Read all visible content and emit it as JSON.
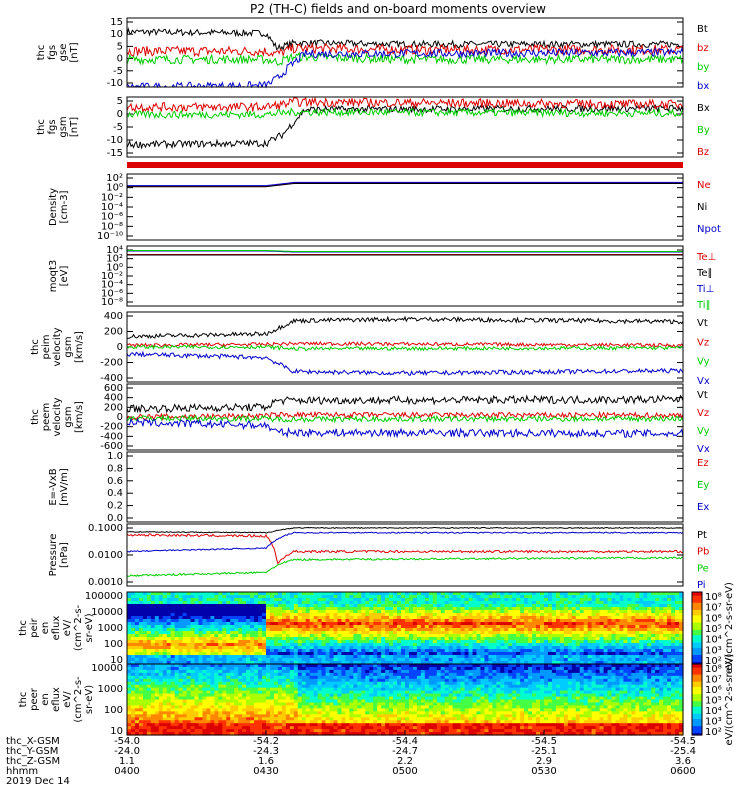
{
  "title": "P2 (TH-C) fields and on-board moments overview",
  "colors": {
    "black": "#000000",
    "red": "#dd0000",
    "green": "#00cc00",
    "blue": "#0000cc"
  },
  "chart_data": [
    {
      "type": "line",
      "ylabel": [
        "thc",
        "fgs",
        "gse",
        "[nT]"
      ],
      "yticks": [
        "15",
        "10",
        "5",
        "0",
        "-5",
        "-10"
      ],
      "legend": [
        {
          "text": "Bt",
          "color": "black"
        },
        {
          "text": "bz",
          "color": "red"
        },
        {
          "text": "by",
          "color": "green"
        },
        {
          "text": "bx",
          "color": "blue"
        }
      ],
      "series": [
        {
          "name": "Bt",
          "color": "black",
          "x": [
            0,
            0.25,
            0.27,
            0.3,
            0.5,
            0.8,
            1
          ],
          "y": [
            10,
            9.5,
            4,
            6,
            5.5,
            5.5,
            5.5
          ],
          "noise": 1.2
        },
        {
          "name": "bz",
          "color": "red",
          "x": [
            0,
            0.25,
            0.27,
            0.3,
            0.5,
            1
          ],
          "y": [
            3,
            3,
            2,
            4,
            3.5,
            3.5
          ],
          "noise": 1.8
        },
        {
          "name": "by",
          "color": "green",
          "x": [
            0,
            0.25,
            0.27,
            0.3,
            0.5,
            1
          ],
          "y": [
            0,
            0,
            -1,
            1,
            0,
            0
          ],
          "noise": 1.6
        },
        {
          "name": "bx",
          "color": "blue",
          "x": [
            0,
            0.25,
            0.27,
            0.29,
            0.32,
            1
          ],
          "y": [
            -10,
            -9.5,
            -7,
            -3,
            2,
            2.5
          ],
          "noise": 1.5
        }
      ]
    },
    {
      "type": "line",
      "ylabel": [
        "thc",
        "fgs",
        "gsm",
        "[nT]"
      ],
      "yticks": [
        "5",
        "0",
        "-5",
        "-10",
        "-15"
      ],
      "legend": [
        {
          "text": "Bx",
          "color": "black"
        },
        {
          "text": "By",
          "color": "green"
        },
        {
          "text": "Bz",
          "color": "red"
        }
      ],
      "series": [
        {
          "name": "Bx",
          "color": "black",
          "x": [
            0,
            0.25,
            0.28,
            0.3,
            0.32,
            1
          ],
          "y": [
            -12,
            -11.5,
            -8,
            -3,
            2,
            2.5
          ],
          "noise": 1.4
        },
        {
          "name": "By",
          "color": "green",
          "x": [
            0,
            0.25,
            0.3,
            1
          ],
          "y": [
            0,
            0,
            1,
            0.5
          ],
          "noise": 1.5
        },
        {
          "name": "Bz",
          "color": "red",
          "x": [
            0,
            0.25,
            0.28,
            0.3,
            1
          ],
          "y": [
            3,
            3,
            4,
            5,
            4
          ],
          "noise": 1.8
        }
      ]
    },
    {
      "type": "line",
      "ylabel": [
        "Density",
        "[cm-3]"
      ],
      "yticks": [
        "10²",
        "10⁰",
        "10⁻²",
        "10⁻⁴",
        "10⁻⁶",
        "10⁻⁸",
        "10⁻¹⁰"
      ],
      "legend": [
        {
          "text": "Ne",
          "color": "red"
        },
        {
          "text": "Ni",
          "color": "black"
        },
        {
          "text": "Npot",
          "color": "blue"
        }
      ],
      "series": [
        {
          "name": "Ne",
          "color": "red",
          "x": [
            0,
            0.25,
            0.3,
            1
          ],
          "y": [
            0.2,
            0.2,
            0.8,
            0.8
          ]
        },
        {
          "name": "Ni",
          "color": "black",
          "x": [
            0,
            0.25,
            0.3,
            1
          ],
          "y": [
            0.1,
            0.1,
            0.7,
            0.7
          ]
        },
        {
          "name": "Npot",
          "color": "blue",
          "x": [
            0,
            0.25,
            0.3,
            1
          ],
          "y": [
            0.3,
            0.3,
            0.9,
            0.9
          ]
        }
      ]
    },
    {
      "type": "line",
      "ylabel": [
        "moqt3",
        "[eV]"
      ],
      "yticks": [
        "10⁴",
        "10²",
        "10⁰",
        "10⁻²",
        "10⁻⁴",
        "10⁻⁶",
        "10⁻⁸"
      ],
      "legend": [
        {
          "text": "Te⊥",
          "color": "red"
        },
        {
          "text": "Te∥",
          "color": "black"
        },
        {
          "text": "Ti⊥",
          "color": "blue"
        },
        {
          "text": "Ti∥",
          "color": "green"
        }
      ],
      "series": [
        {
          "name": "Te⊥",
          "color": "red",
          "x": [
            0,
            1
          ],
          "y": [
            2.3,
            2.3
          ]
        },
        {
          "name": "Te∥",
          "color": "black",
          "x": [
            0,
            1
          ],
          "y": [
            2.2,
            2.2
          ]
        },
        {
          "name": "Ti⊥",
          "color": "blue",
          "x": [
            0,
            0.25,
            0.3,
            1
          ],
          "y": [
            3.0,
            3.0,
            2.8,
            2.8
          ]
        },
        {
          "name": "Ti∥",
          "color": "green",
          "x": [
            0,
            0.25,
            0.3,
            1
          ],
          "y": [
            3.1,
            3.1,
            2.9,
            2.9
          ]
        }
      ]
    },
    {
      "type": "line",
      "ylabel": [
        "thc",
        "peim",
        "velocity",
        "gsm",
        "[km/s]"
      ],
      "yticks": [
        "400",
        "200",
        "0",
        "-200",
        "-400"
      ],
      "legend": [
        {
          "text": "Vt",
          "color": "black"
        },
        {
          "text": "Vz",
          "color": "red"
        },
        {
          "text": "Vy",
          "color": "green"
        },
        {
          "text": "Vx",
          "color": "blue"
        }
      ],
      "series": [
        {
          "name": "Vt",
          "color": "black",
          "x": [
            0,
            0.25,
            0.3,
            0.5,
            1
          ],
          "y": [
            120,
            150,
            300,
            320,
            290
          ],
          "noise": 25
        },
        {
          "name": "Vz",
          "color": "red",
          "x": [
            0,
            0.25,
            0.3,
            1
          ],
          "y": [
            20,
            30,
            40,
            20
          ],
          "noise": 20
        },
        {
          "name": "Vy",
          "color": "green",
          "x": [
            0,
            0.25,
            0.3,
            1
          ],
          "y": [
            0,
            0,
            -20,
            -10
          ],
          "noise": 20
        },
        {
          "name": "Vx",
          "color": "blue",
          "x": [
            0,
            0.25,
            0.3,
            0.5,
            1
          ],
          "y": [
            -80,
            -120,
            -280,
            -300,
            -270
          ],
          "noise": 25
        }
      ]
    },
    {
      "type": "line",
      "ylabel": [
        "thc",
        "peem",
        "velocity",
        "gsm",
        "[km/s]"
      ],
      "yticks": [
        "600",
        "400",
        "200",
        "0",
        "-200",
        "-400",
        "-600"
      ],
      "legend": [
        {
          "text": "Vt",
          "color": "black"
        },
        {
          "text": "Vz",
          "color": "red"
        },
        {
          "text": "Vy",
          "color": "green"
        },
        {
          "text": "Vx",
          "color": "blue"
        }
      ],
      "series": [
        {
          "name": "Vt",
          "color": "black",
          "x": [
            0,
            0.25,
            0.27,
            1
          ],
          "y": [
            150,
            180,
            300,
            320
          ],
          "noise": 70
        },
        {
          "name": "Vz",
          "color": "red",
          "x": [
            0,
            0.25,
            0.27,
            1
          ],
          "y": [
            0,
            20,
            40,
            30
          ],
          "noise": 50
        },
        {
          "name": "Vy",
          "color": "green",
          "x": [
            0,
            0.25,
            0.27,
            1
          ],
          "y": [
            -20,
            -30,
            -40,
            -30
          ],
          "noise": 50
        },
        {
          "name": "Vx",
          "color": "blue",
          "x": [
            0,
            0.25,
            0.27,
            1
          ],
          "y": [
            -100,
            -150,
            -280,
            -300
          ],
          "noise": 70
        }
      ]
    },
    {
      "type": "line",
      "ylabel": [
        "E=-VxB",
        "[mV/m]"
      ],
      "yticks": [
        "1.0",
        "0.8",
        "0.6",
        "0.4",
        "0.2",
        "0.0"
      ],
      "legend": [
        {
          "text": "Ez",
          "color": "red"
        },
        {
          "text": "Ey",
          "color": "green"
        },
        {
          "text": "Ex",
          "color": "blue"
        }
      ],
      "series": []
    },
    {
      "type": "line",
      "ylabel": [
        "Pressure",
        "[nPa]"
      ],
      "yticks": [
        "0.1000",
        "0.0100",
        "0.0010"
      ],
      "legend": [
        {
          "text": "Pt",
          "color": "black"
        },
        {
          "text": "Pb",
          "color": "red"
        },
        {
          "text": "Pe",
          "color": "green"
        },
        {
          "text": "Pi",
          "color": "blue"
        }
      ],
      "series": [
        {
          "name": "Pt",
          "color": "black",
          "x": [
            0,
            0.25,
            0.3,
            1
          ],
          "y": [
            0.065,
            0.06,
            0.09,
            0.09
          ],
          "noise": 0.08
        },
        {
          "name": "Pb",
          "color": "red",
          "x": [
            0,
            0.25,
            0.27,
            0.3,
            1
          ],
          "y": [
            0.05,
            0.045,
            0.004,
            0.012,
            0.012
          ],
          "noise": 0.2
        },
        {
          "name": "Pe",
          "color": "green",
          "x": [
            0,
            0.25,
            0.3,
            1
          ],
          "y": [
            0.0015,
            0.002,
            0.006,
            0.007
          ],
          "noise": 0.15
        },
        {
          "name": "Pi",
          "color": "blue",
          "x": [
            0,
            0.25,
            0.3,
            1
          ],
          "y": [
            0.012,
            0.016,
            0.06,
            0.06
          ],
          "noise": 0.1
        }
      ]
    },
    {
      "type": "heatmap",
      "ylabel": [
        "thc",
        "peir",
        "en",
        "eflux",
        "eV/",
        "(cm^2-s-",
        "sr-eV)"
      ],
      "yticks": [
        "100000",
        "10000",
        "1000",
        "100",
        "10"
      ],
      "colorbar": {
        "label": "eV/(cm^2-s-sr-eV)",
        "ticks": [
          "10⁸",
          "10⁷",
          "10⁶",
          "10⁵",
          "10⁴",
          "10³",
          "10²"
        ]
      }
    },
    {
      "type": "heatmap",
      "ylabel": [
        "thc",
        "peer",
        "en",
        "eflux",
        "eV/",
        "(cm^2-s-",
        "sr-eV)"
      ],
      "yticks": [
        "10000",
        "1000",
        "100",
        "10"
      ],
      "colorbar": {
        "label": "eV/(cm^2-s-sr-eV)",
        "ticks": [
          "10⁸",
          "10⁷",
          "10⁶",
          "10⁵",
          "10⁴",
          "10³",
          "10²"
        ]
      }
    }
  ],
  "colorbar_caption": "[eV/(cm^2-s-sr-eV) (All Qs)]",
  "xaxis": {
    "row_labels": [
      "thc_X-GSM",
      "thc_Y-GSM",
      "thc_Z-GSM",
      "hhmm",
      "2019 Dec 14"
    ],
    "columns": [
      [
        "-54.0",
        "-24.0",
        "1.1",
        "0400"
      ],
      [
        "-54.2",
        "-24.3",
        "1.6",
        "0430"
      ],
      [
        "-54.4",
        "-24.7",
        "2.2",
        "0500"
      ],
      [
        "-54.5",
        "-25.1",
        "2.9",
        "0530"
      ],
      [
        "-54.5",
        "-25.4",
        "3.6",
        "0600"
      ]
    ]
  }
}
